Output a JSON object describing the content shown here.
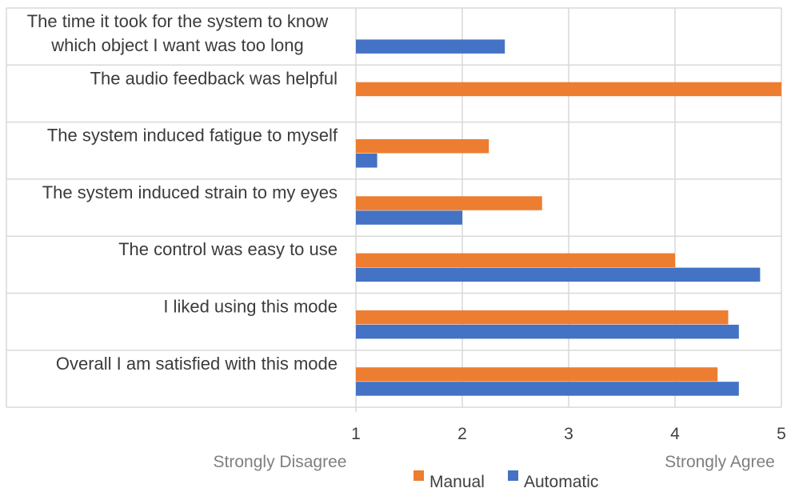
{
  "chart_data": {
    "type": "bar",
    "orientation": "horizontal",
    "categories": [
      [
        "The time it took for the system to know",
        "which object I want was too long"
      ],
      [
        "The audio feedback was helpful"
      ],
      [
        "The system induced fatigue to myself"
      ],
      [
        "The system induced strain to my eyes"
      ],
      [
        "The control was easy to use"
      ],
      [
        "I liked using this mode"
      ],
      [
        "Overall I am satisfied with this mode"
      ]
    ],
    "series": [
      {
        "name": "Manual",
        "color": "#ED7D31",
        "values": [
          null,
          5.0,
          2.25,
          2.75,
          4.0,
          4.5,
          4.4
        ]
      },
      {
        "name": "Automatic",
        "color": "#4472C4",
        "values": [
          2.4,
          null,
          1.2,
          2.0,
          4.8,
          4.6,
          4.6
        ]
      }
    ],
    "xlim": [
      1,
      5
    ],
    "xticks": [
      "1",
      "2",
      "3",
      "4",
      "5"
    ],
    "x_anchor_labels": {
      "low": "Strongly Disagree",
      "high": "Strongly Agree"
    },
    "grid": true,
    "legend_position": "bottom",
    "title": "",
    "xlabel": "",
    "ylabel": ""
  }
}
